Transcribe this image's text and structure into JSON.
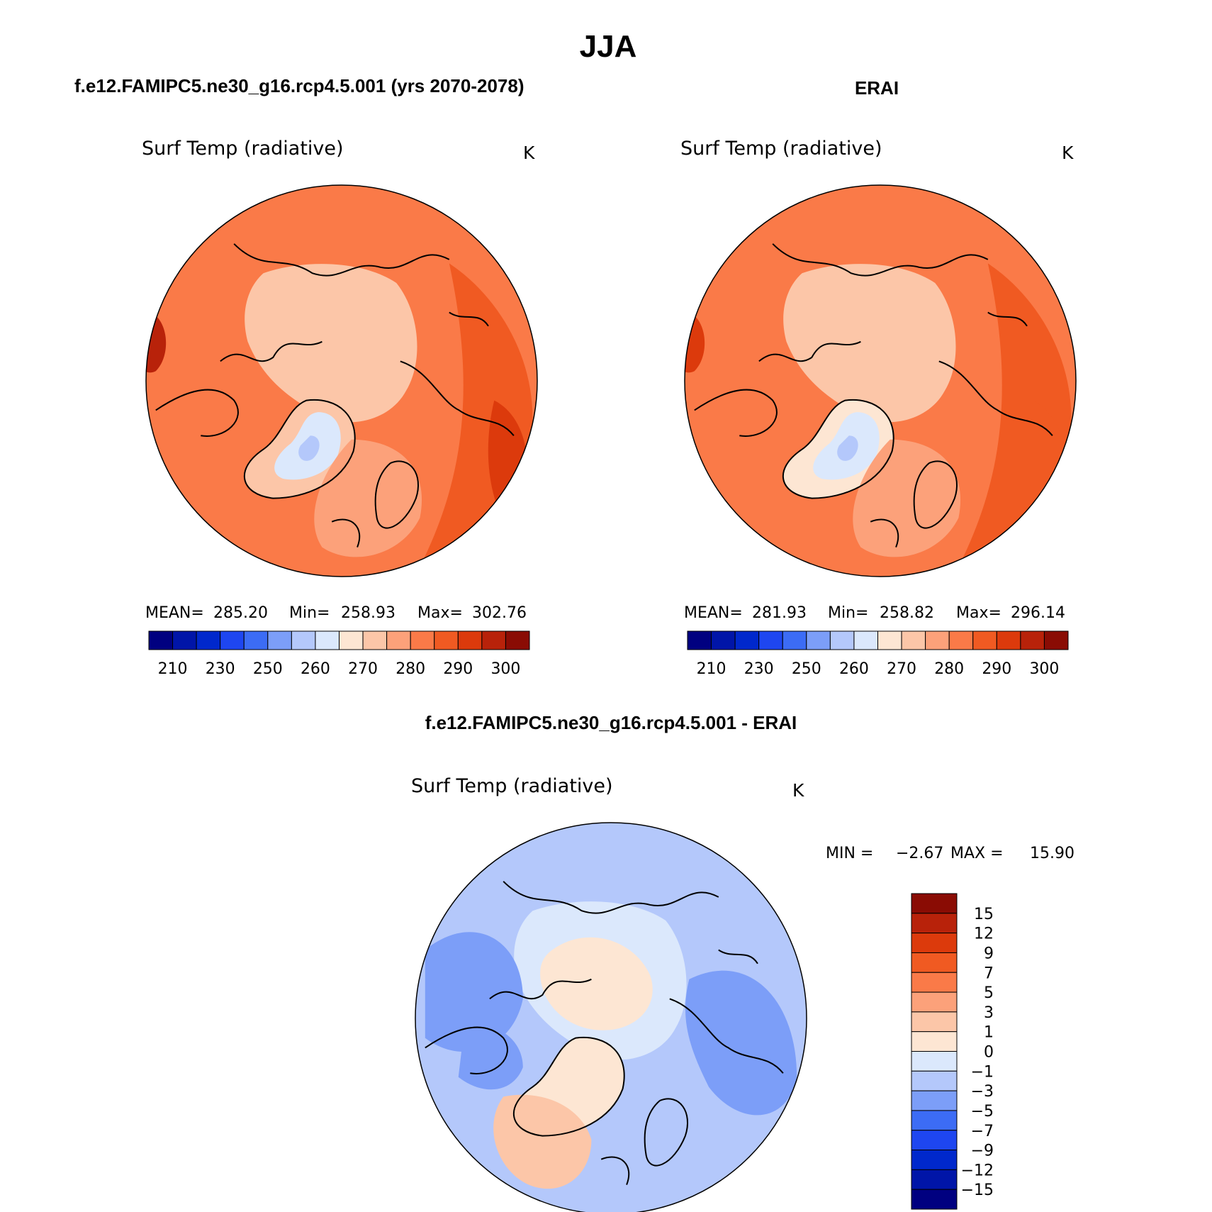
{
  "page_title": "JJA",
  "chart_data": [
    {
      "type": "heatmap",
      "id": "model",
      "panel_title": "f.e12.FAMIPC5.ne30_g16.rcp4.5.001 (yrs 2070-2078)",
      "variable": "Surf Temp (radiative)",
      "units": "K",
      "projection": "north polar stereographic",
      "stats": {
        "mean_label": "MEAN=",
        "mean": "285.20",
        "min_label": "Min=",
        "min": "258.93",
        "max_label": "Max=",
        "max": "302.76"
      },
      "colorbar": {
        "orientation": "horizontal",
        "colors": [
          "#000080",
          "#0015a8",
          "#0028cc",
          "#1e46f0",
          "#3c6cf5",
          "#7c9ef8",
          "#b4c8fb",
          "#dbe8fc",
          "#fde6d3",
          "#fcc6a8",
          "#fca17a",
          "#fa7a48",
          "#f05a22",
          "#dc3a0c",
          "#b8220a",
          "#8a0c04"
        ],
        "labels": [
          "210",
          "230",
          "250",
          "260",
          "270",
          "280",
          "290",
          "300"
        ]
      },
      "field": {
        "background": 11,
        "regions": [
          {
            "name": "arctic-ocean",
            "level": 9
          },
          {
            "name": "greenland",
            "level": 9
          },
          {
            "name": "greenland-ice-core",
            "level": 7
          },
          {
            "name": "greenland-ice-inner",
            "level": 6
          },
          {
            "name": "north-atlantic",
            "level": 10
          },
          {
            "name": "hot-interior",
            "level": 12
          },
          {
            "name": "hot-desert",
            "level": 13
          },
          {
            "name": "hot-west",
            "level": 14
          }
        ]
      }
    },
    {
      "type": "heatmap",
      "id": "obs",
      "panel_title": "ERAI",
      "variable": "Surf Temp (radiative)",
      "units": "K",
      "projection": "north polar stereographic",
      "stats": {
        "mean_label": "MEAN=",
        "mean": "281.93",
        "min_label": "Min=",
        "min": "258.82",
        "max_label": "Max=",
        "max": "296.14"
      },
      "colorbar": {
        "orientation": "horizontal",
        "colors": [
          "#000080",
          "#0015a8",
          "#0028cc",
          "#1e46f0",
          "#3c6cf5",
          "#7c9ef8",
          "#b4c8fb",
          "#dbe8fc",
          "#fde6d3",
          "#fcc6a8",
          "#fca17a",
          "#fa7a48",
          "#f05a22",
          "#dc3a0c",
          "#b8220a",
          "#8a0c04"
        ],
        "labels": [
          "210",
          "230",
          "250",
          "260",
          "270",
          "280",
          "290",
          "300"
        ]
      },
      "field": {
        "background": 11,
        "regions": [
          {
            "name": "arctic-ocean",
            "level": 9
          },
          {
            "name": "greenland",
            "level": 8
          },
          {
            "name": "greenland-ice-core",
            "level": 7
          },
          {
            "name": "greenland-ice-inner",
            "level": 6
          },
          {
            "name": "north-atlantic",
            "level": 10
          },
          {
            "name": "hot-interior",
            "level": 12
          },
          {
            "name": "hot-desert",
            "level": 12
          },
          {
            "name": "hot-west",
            "level": 13
          }
        ]
      }
    },
    {
      "type": "heatmap",
      "id": "diff",
      "panel_title": "f.e12.FAMIPC5.ne30_g16.rcp4.5.001 - ERAI",
      "variable": "Surf Temp (radiative)",
      "units": "K",
      "projection": "north polar stereographic",
      "stats": {
        "min_label": "MIN =",
        "min": "−2.67",
        "max_label": "MAX =",
        "max": "15.90"
      },
      "colorbar": {
        "orientation": "vertical",
        "colors": [
          "#8a0c04",
          "#b8220a",
          "#dc3a0c",
          "#f05a22",
          "#fa7a48",
          "#fca17a",
          "#fcc6a8",
          "#fde6d3",
          "#dbe8fc",
          "#b4c8fb",
          "#7c9ef8",
          "#3c6cf5",
          "#1e46f0",
          "#0028cc",
          "#0015a8",
          "#000080"
        ],
        "labels": [
          "15",
          "12",
          "9",
          "7",
          "5",
          "3",
          "1",
          "0",
          "−1",
          "−3",
          "−5",
          "−7",
          "−9",
          "−12",
          "−15"
        ]
      },
      "field": {
        "background": 6,
        "regions": [
          {
            "name": "arctic-ocean",
            "level": 7
          },
          {
            "name": "arctic-core",
            "level": 8
          },
          {
            "name": "greenland",
            "level": 8
          },
          {
            "name": "greenland-negative",
            "level": 9
          },
          {
            "name": "pacific-warm",
            "level": 5
          },
          {
            "name": "siberia-warm",
            "level": 5
          },
          {
            "name": "canada-warm",
            "level": 5
          }
        ]
      }
    }
  ]
}
